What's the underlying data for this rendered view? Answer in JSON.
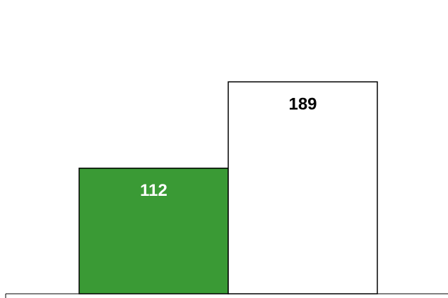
{
  "chart_data": {
    "type": "bar",
    "categories": [
      null,
      null
    ],
    "values": [
      112,
      189
    ],
    "colors": [
      "#3a9a35",
      "#ffffff"
    ],
    "ylim": [
      0,
      262
    ]
  }
}
